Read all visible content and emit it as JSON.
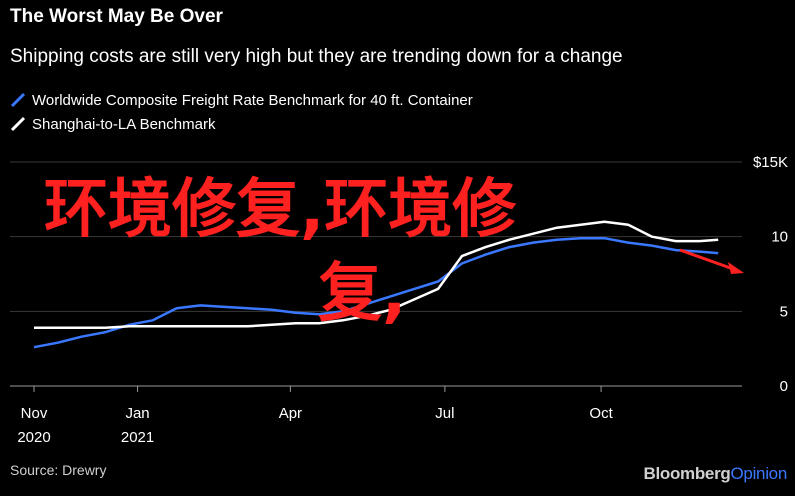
{
  "header": {
    "title": "The Worst May Be Over",
    "subtitle": "Shipping costs are still very high but they are trending down for a change"
  },
  "source": "Source: Drewry",
  "brand": {
    "part1": "Bloomberg",
    "part2": "Opinion"
  },
  "watermark": {
    "line1": "环境修复,环境修",
    "line2": "复,"
  },
  "colors": {
    "background": "#000000",
    "series1": "#3a78ff",
    "series2": "#ffffff",
    "watermark": "#ff2020",
    "grid": "#3a3a3a"
  },
  "chart_data": {
    "type": "line",
    "title": "The Worst May Be Over",
    "subtitle": "Shipping costs are still very high but they are trending down for a change",
    "unit_label": "$15K",
    "ylim": [
      0,
      15
    ],
    "yticks": [
      {
        "value": 15,
        "label": "$15K"
      },
      {
        "value": 10,
        "label": "10"
      },
      {
        "value": 5,
        "label": "5"
      },
      {
        "value": 0,
        "label": "0"
      }
    ],
    "xlim": [
      "2020-11-01",
      "2021-12-23"
    ],
    "xticks": [
      {
        "date": "2020-11-01",
        "label": "Nov",
        "label2": "2020"
      },
      {
        "date": "2021-01-01",
        "label": "Jan",
        "label2": "2021"
      },
      {
        "date": "2021-04-01",
        "label": "Apr",
        "label2": ""
      },
      {
        "date": "2021-07-01",
        "label": "Jul",
        "label2": ""
      },
      {
        "date": "2021-10-01",
        "label": "Oct",
        "label2": ""
      }
    ],
    "grid": true,
    "legend_position": "top-left",
    "series": [
      {
        "name": "Worldwide Composite Freight Rate Benchmark for 40 ft. Container",
        "color": "#3a78ff",
        "points": [
          [
            "2020-11-01",
            2.6
          ],
          [
            "2020-11-15",
            2.9
          ],
          [
            "2020-11-29",
            3.3
          ],
          [
            "2020-12-13",
            3.6
          ],
          [
            "2020-12-27",
            4.1
          ],
          [
            "2021-01-10",
            4.4
          ],
          [
            "2021-01-24",
            5.2
          ],
          [
            "2021-02-07",
            5.4
          ],
          [
            "2021-02-21",
            5.3
          ],
          [
            "2021-03-07",
            5.2
          ],
          [
            "2021-03-21",
            5.1
          ],
          [
            "2021-04-04",
            4.9
          ],
          [
            "2021-04-18",
            4.8
          ],
          [
            "2021-05-02",
            5.0
          ],
          [
            "2021-05-16",
            5.5
          ],
          [
            "2021-05-30",
            6.0
          ],
          [
            "2021-06-13",
            6.5
          ],
          [
            "2021-06-27",
            7.0
          ],
          [
            "2021-07-11",
            8.2
          ],
          [
            "2021-07-25",
            8.8
          ],
          [
            "2021-08-08",
            9.3
          ],
          [
            "2021-08-22",
            9.6
          ],
          [
            "2021-09-05",
            9.8
          ],
          [
            "2021-09-19",
            9.9
          ],
          [
            "2021-10-03",
            9.9
          ],
          [
            "2021-10-17",
            9.6
          ],
          [
            "2021-10-31",
            9.4
          ],
          [
            "2021-11-14",
            9.1
          ],
          [
            "2021-11-28",
            9.0
          ],
          [
            "2021-12-09",
            8.9
          ]
        ]
      },
      {
        "name": "Shanghai-to-LA Benchmark",
        "color": "#ffffff",
        "points": [
          [
            "2020-11-01",
            3.9
          ],
          [
            "2020-11-15",
            3.9
          ],
          [
            "2020-11-29",
            3.9
          ],
          [
            "2020-12-13",
            3.9
          ],
          [
            "2020-12-27",
            4.0
          ],
          [
            "2021-01-10",
            4.0
          ],
          [
            "2021-01-24",
            4.0
          ],
          [
            "2021-02-07",
            4.0
          ],
          [
            "2021-02-21",
            4.0
          ],
          [
            "2021-03-07",
            4.0
          ],
          [
            "2021-03-21",
            4.1
          ],
          [
            "2021-04-04",
            4.2
          ],
          [
            "2021-04-18",
            4.2
          ],
          [
            "2021-05-02",
            4.4
          ],
          [
            "2021-05-16",
            4.7
          ],
          [
            "2021-05-30",
            5.1
          ],
          [
            "2021-06-13",
            5.8
          ],
          [
            "2021-06-27",
            6.5
          ],
          [
            "2021-07-11",
            8.7
          ],
          [
            "2021-07-25",
            9.3
          ],
          [
            "2021-08-08",
            9.8
          ],
          [
            "2021-08-22",
            10.2
          ],
          [
            "2021-09-05",
            10.6
          ],
          [
            "2021-09-19",
            10.8
          ],
          [
            "2021-10-03",
            11.0
          ],
          [
            "2021-10-17",
            10.8
          ],
          [
            "2021-10-31",
            10.0
          ],
          [
            "2021-11-14",
            9.7
          ],
          [
            "2021-11-28",
            9.7
          ],
          [
            "2021-12-09",
            9.8
          ]
        ]
      }
    ]
  }
}
